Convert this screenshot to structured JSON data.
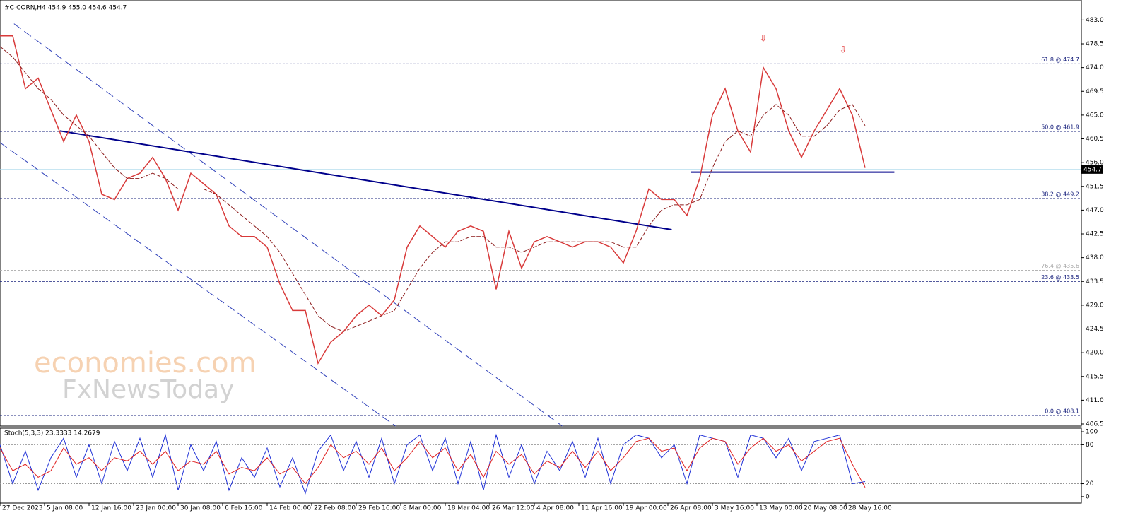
{
  "chart_data": [
    {
      "type": "line",
      "title": "#C-CORN,H4 454.9 455.0 454.6 454.7",
      "xlim": [
        0,
        85
      ],
      "ylim": [
        406.1,
        486.8
      ],
      "yticks": [
        {
          "value": 483.0,
          "label": "483.0"
        },
        {
          "value": 478.5,
          "label": "478.5"
        },
        {
          "value": 474.0,
          "label": "474.0"
        },
        {
          "value": 469.5,
          "label": "469.5"
        },
        {
          "value": 465.0,
          "label": "465.0"
        },
        {
          "value": 460.5,
          "label": "460.5"
        },
        {
          "value": 456.0,
          "label": "456.0"
        },
        {
          "value": 451.5,
          "label": "451.5"
        },
        {
          "value": 447.0,
          "label": "447.0"
        },
        {
          "value": 442.5,
          "label": "442.5"
        },
        {
          "value": 438.0,
          "label": "438.0"
        },
        {
          "value": 433.5,
          "label": "433.5"
        },
        {
          "value": 429.0,
          "label": "429.0"
        },
        {
          "value": 424.5,
          "label": "424.5"
        },
        {
          "value": 420.0,
          "label": "420.0"
        },
        {
          "value": 415.5,
          "label": "415.5"
        },
        {
          "value": 411.0,
          "label": "411.0"
        },
        {
          "value": 406.5,
          "label": "406.5"
        }
      ],
      "current_price": 454.7,
      "series": [
        {
          "color": "#d83a3a",
          "values": [
            480,
            480,
            470,
            472,
            466,
            460,
            465,
            460,
            450,
            449,
            453,
            454,
            457,
            453,
            447,
            454,
            452,
            450,
            444,
            442,
            442,
            440,
            433,
            428,
            428,
            418,
            422,
            424,
            427,
            429,
            427,
            430,
            440,
            444,
            442,
            440,
            443,
            444,
            443,
            432,
            443,
            436,
            441,
            442,
            441,
            440,
            441,
            441,
            440,
            437,
            443,
            451,
            449,
            449,
            446,
            453,
            465,
            470,
            462,
            458,
            474,
            470,
            462,
            457,
            462,
            466,
            470,
            465,
            455
          ]
        },
        {
          "color": "#8b1a1a",
          "values": [
            478,
            476,
            473,
            470,
            468,
            465,
            463,
            461,
            458,
            455,
            453,
            453,
            454,
            453,
            451,
            451,
            451,
            450,
            448,
            446,
            444,
            442,
            439,
            435,
            431,
            427,
            425,
            424,
            425,
            426,
            427,
            428,
            432,
            436,
            439,
            441,
            441,
            442,
            442,
            440,
            440,
            439,
            440,
            441,
            441,
            441,
            441,
            441,
            441,
            440,
            440,
            444,
            447,
            448,
            448,
            449,
            455,
            460,
            462,
            461,
            465,
            467,
            465,
            461,
            461,
            463,
            466,
            467,
            463
          ]
        }
      ],
      "fib_levels": [
        {
          "label": "61.8 @ 474.7",
          "value": 474.7,
          "color": "#1a237e"
        },
        {
          "label": "50.0 @ 461.9",
          "value": 461.9,
          "color": "#1a237e"
        },
        {
          "label": "38.2 @ 449.2",
          "value": 449.2,
          "color": "#1a237e"
        },
        {
          "label": "76.4 @ 435.6",
          "value": 435.6,
          "color": "#aaaaaa"
        },
        {
          "label": "23.6 @ 433.5",
          "value": 433.5,
          "color": "#1a237e"
        },
        {
          "label": "0.0 @ 408.1",
          "value": 408.1,
          "color": "#1a237e"
        }
      ],
      "trendlines": [
        {
          "x": [
            4.72,
            52.8
          ],
          "y": [
            462,
            443.3
          ],
          "color": "#00008b",
          "style": "solid"
        },
        {
          "x": [
            54.3,
            70.3
          ],
          "y": [
            454.2,
            454.2
          ],
          "color": "#00008b",
          "style": "solid"
        },
        {
          "x": [
            1.1,
            44.2
          ],
          "y": [
            482.3,
            406.1
          ],
          "color": "#3344bb",
          "style": "dashed"
        },
        {
          "x": [
            0,
            31.1
          ],
          "y": [
            459.8,
            406.1
          ],
          "color": "#3344bb",
          "style": "dashed"
        }
      ],
      "watermark": [
        "economies.com",
        "FxNewsToday"
      ]
    },
    {
      "type": "line",
      "title": "Stoch(5,3,3) 23.3333 14.2679",
      "xlim": [
        0,
        85
      ],
      "ylim": [
        -9.9,
        105.5
      ],
      "yticks": [
        0,
        20,
        80,
        100
      ],
      "levels": [
        20,
        80
      ],
      "xticks": [
        {
          "value": 0,
          "label": "27 Dec 2023"
        },
        {
          "value": 3.5,
          "label": "5 Jan 08:00"
        },
        {
          "value": 7,
          "label": "12 Jan 16:00"
        },
        {
          "value": 10.5,
          "label": "23 Jan 00:00"
        },
        {
          "value": 14,
          "label": "30 Jan 08:00"
        },
        {
          "value": 17.5,
          "label": "6 Feb 16:00"
        },
        {
          "value": 21,
          "label": "14 Feb 00:00"
        },
        {
          "value": 24.5,
          "label": "22 Feb 08:00"
        },
        {
          "value": 28,
          "label": "29 Feb 16:00"
        },
        {
          "value": 31.5,
          "label": "8 Mar 00:00"
        },
        {
          "value": 35,
          "label": "18 Mar 04:00"
        },
        {
          "value": 38.5,
          "label": "26 Mar 12:00"
        },
        {
          "value": 42,
          "label": "4 Apr 08:00"
        },
        {
          "value": 45.5,
          "label": "11 Apr 16:00"
        },
        {
          "value": 49,
          "label": "19 Apr 00:00"
        },
        {
          "value": 52.5,
          "label": "26 Apr 08:00"
        },
        {
          "value": 56,
          "label": "3 May 16:00"
        },
        {
          "value": 59.5,
          "label": "13 May 00:00"
        },
        {
          "value": 63,
          "label": "20 May 08:00"
        },
        {
          "value": 66.5,
          "label": "28 May 16:00"
        }
      ],
      "series": [
        {
          "color": "#1e2fd6",
          "values": [
            80,
            20,
            70,
            10,
            60,
            90,
            30,
            80,
            20,
            85,
            40,
            90,
            30,
            95,
            10,
            80,
            40,
            85,
            10,
            60,
            30,
            75,
            15,
            60,
            5,
            70,
            95,
            40,
            85,
            30,
            90,
            20,
            80,
            95,
            40,
            90,
            20,
            85,
            10,
            95,
            30,
            80,
            20,
            70,
            40,
            85,
            30,
            90,
            20,
            80,
            95,
            90,
            60,
            80,
            20,
            95,
            90,
            85,
            30,
            95,
            90,
            60,
            90,
            40,
            85,
            90,
            95,
            20,
            23.3333
          ]
        },
        {
          "color": "#e02020",
          "values": [
            75,
            40,
            50,
            30,
            40,
            75,
            50,
            60,
            40,
            60,
            55,
            70,
            50,
            70,
            40,
            55,
            50,
            70,
            35,
            45,
            40,
            60,
            35,
            45,
            20,
            45,
            80,
            60,
            70,
            50,
            75,
            40,
            60,
            85,
            60,
            75,
            40,
            65,
            30,
            70,
            50,
            65,
            35,
            55,
            45,
            70,
            45,
            70,
            40,
            60,
            85,
            90,
            70,
            75,
            40,
            75,
            90,
            85,
            50,
            75,
            90,
            70,
            80,
            55,
            70,
            85,
            90,
            50,
            14.2679
          ]
        }
      ]
    }
  ]
}
